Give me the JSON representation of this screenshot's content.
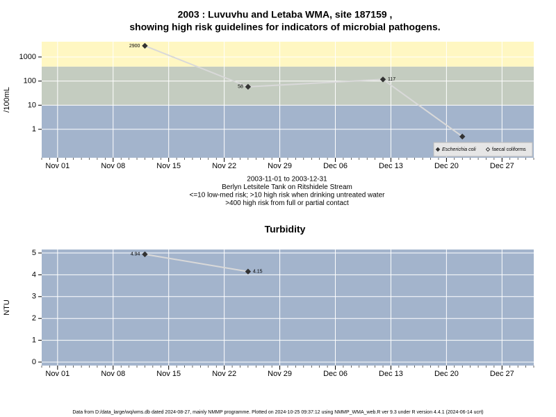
{
  "chart_data": [
    {
      "type": "line",
      "title": [
        "2003 : Luvuvhu and Letaba WMA, site 187159 ,",
        "showing high risk guidelines for indicators of microbial pathogens."
      ],
      "ylabel": "/100mL",
      "log_scale": true,
      "grid": true,
      "x": [
        "2003-11-12",
        "2003-11-25",
        "2003-12-12",
        "2003-12-22"
      ],
      "series": [
        {
          "name": "Escherichia coli",
          "color": "#333333",
          "line_color": "#d9d9d9",
          "marker": "filled",
          "values": [
            2900,
            58,
            117,
            0.5
          ],
          "value_labels": [
            "2900",
            "58",
            "117",
            null
          ]
        },
        {
          "name": "faecal coliforms",
          "color": "#333333",
          "line_color": "#d9d9d9",
          "marker": "open",
          "values": [
            null,
            null,
            null,
            null
          ]
        }
      ],
      "xlim": [
        "2003-10-30",
        "2003-12-31"
      ],
      "xticks": [
        {
          "value": "2003-11-01",
          "label": "Nov 01"
        },
        {
          "value": "2003-11-08",
          "label": "Nov 08"
        },
        {
          "value": "2003-11-15",
          "label": "Nov 15"
        },
        {
          "value": "2003-11-22",
          "label": "Nov 22"
        },
        {
          "value": "2003-11-29",
          "label": "Nov 29"
        },
        {
          "value": "2003-12-06",
          "label": "Dec 06"
        },
        {
          "value": "2003-12-13",
          "label": "Dec 13"
        },
        {
          "value": "2003-12-20",
          "label": "Dec 20"
        },
        {
          "value": "2003-12-27",
          "label": "Dec 27"
        }
      ],
      "ylim": [
        0.066,
        4300
      ],
      "yticks": [
        1,
        10,
        100,
        1000
      ],
      "bands": [
        {
          "to": 10,
          "color": "#a3b4cc"
        },
        {
          "from": 10,
          "to": 400,
          "color": "#c4ccc0"
        },
        {
          "from": 400,
          "color": "#fff7c2"
        }
      ],
      "legend": "bottom-right",
      "notes": [
        "2003-11-01 to 2003-12-31",
        "Berlyn Letsitele Tank on Ritshidele Stream",
        "<=10 low-med risk; >10 high risk when drinking untreated water",
        ">400 high risk from full or partial contact"
      ]
    },
    {
      "type": "line",
      "title": [
        "Turbidity"
      ],
      "ylabel": "NTU",
      "log_scale": false,
      "grid": true,
      "x": [
        "2003-11-12",
        "2003-11-25"
      ],
      "series": [
        {
          "name": "Turbidity",
          "color": "#333333",
          "line_color": "#d9d9d9",
          "marker": "filled",
          "values": [
            4.94,
            4.15
          ]
        }
      ],
      "xlim": [
        "2003-10-30",
        "2003-12-31"
      ],
      "xticks": [
        {
          "value": "2003-11-01",
          "label": "Nov 01"
        },
        {
          "value": "2003-11-08",
          "label": "Nov 08"
        },
        {
          "value": "2003-11-15",
          "label": "Nov 15"
        },
        {
          "value": "2003-11-22",
          "label": "Nov 22"
        },
        {
          "value": "2003-11-29",
          "label": "Nov 29"
        },
        {
          "value": "2003-12-06",
          "label": "Dec 06"
        },
        {
          "value": "2003-12-13",
          "label": "Dec 13"
        },
        {
          "value": "2003-12-20",
          "label": "Dec 20"
        },
        {
          "value": "2003-12-27",
          "label": "Dec 27"
        }
      ],
      "ylim": [
        -0.16,
        5.16
      ],
      "yticks": [
        0,
        1,
        2,
        3,
        4,
        5
      ],
      "bands": [
        {
          "color": "#a3b4cc"
        }
      ]
    }
  ],
  "footer": "Data from D:/data_large/wq/wms.db dated 2024-08-27, mainly NMMP programme. Plotted on 2024-10-25 09:37:12 using NMMP_WMA_web.R ver 9.3 under R version 4.4.1 (2024-06-14 ucrt)"
}
